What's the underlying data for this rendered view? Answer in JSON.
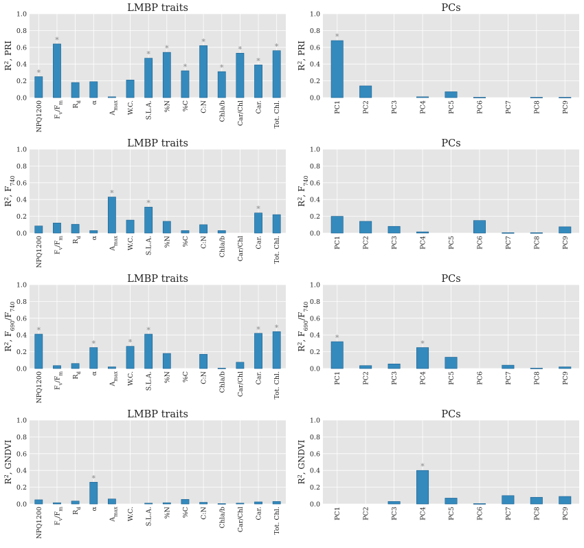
{
  "colors": {
    "panel_bg": "#e5e5e5",
    "grid": "#ffffff",
    "bar": "#348abd",
    "bar_edge": "#1a5f8e",
    "asterisk": "#8c8c8c",
    "text": "#222222"
  },
  "chart_data": [
    {
      "type": "bar",
      "title": "LMBP traits",
      "ylabel_main": "R",
      "ylabel_sup": "2",
      "ylabel_rest": ", PRI",
      "ylabel_sub": "",
      "categories": [
        "NPQ1200",
        "Fv/Fm",
        "Rd",
        "α",
        "Amax",
        "W.C.",
        "S.L.A.",
        "%N",
        "%C",
        "C:N",
        "Chla/b",
        "Car/Chl",
        "Car.",
        "Tot. Chl."
      ],
      "values": [
        0.25,
        0.64,
        0.18,
        0.19,
        0.01,
        0.21,
        0.47,
        0.54,
        0.32,
        0.62,
        0.31,
        0.53,
        0.39,
        0.56
      ],
      "significant": [
        true,
        true,
        false,
        false,
        false,
        false,
        true,
        true,
        true,
        true,
        true,
        true,
        true,
        true
      ],
      "significance_mark": "*",
      "ylim": [
        0,
        1.0
      ],
      "yticks": [
        "0.0",
        "0.2",
        "0.4",
        "0.6",
        "0.8",
        "1.0"
      ],
      "grid": true
    },
    {
      "type": "bar",
      "title": "PCs",
      "ylabel_main": "R",
      "ylabel_sup": "2",
      "ylabel_rest": ", PRI",
      "ylabel_sub": "",
      "categories": [
        "PC1",
        "PC2",
        "PC3",
        "PC4",
        "PC5",
        "PC6",
        "PC7",
        "PC8",
        "PC9"
      ],
      "values": [
        0.68,
        0.14,
        0.0,
        0.01,
        0.07,
        0.005,
        0.0,
        0.005,
        0.005
      ],
      "significant": [
        true,
        false,
        false,
        false,
        false,
        false,
        false,
        false,
        false
      ],
      "significance_mark": "*",
      "ylim": [
        0,
        1.0
      ],
      "yticks": [
        "0.0",
        "0.2",
        "0.4",
        "0.6",
        "0.8",
        "1.0"
      ],
      "grid": true
    },
    {
      "type": "bar",
      "title": "LMBP traits",
      "ylabel_main": "R",
      "ylabel_sup": "2",
      "ylabel_rest": ", F",
      "ylabel_sub": "740",
      "categories": [
        "NPQ1200",
        "Fv/Fm",
        "Rd",
        "α",
        "Amax",
        "W.C.",
        "S.L.A.",
        "%N",
        "%C",
        "C:N",
        "Chla/b",
        "Car/Chl",
        "Car.",
        "Tot. Chl."
      ],
      "values": [
        0.085,
        0.12,
        0.105,
        0.03,
        0.43,
        0.155,
        0.31,
        0.14,
        0.03,
        0.1,
        0.03,
        0.0,
        0.24,
        0.22
      ],
      "significant": [
        false,
        false,
        false,
        false,
        true,
        false,
        true,
        false,
        false,
        false,
        false,
        false,
        true,
        false
      ],
      "significance_mark": "*",
      "ylim": [
        0,
        1.0
      ],
      "yticks": [
        "0.0",
        "0.2",
        "0.4",
        "0.6",
        "0.8",
        "1.0"
      ],
      "grid": true
    },
    {
      "type": "bar",
      "title": "PCs",
      "ylabel_main": "R",
      "ylabel_sup": "2",
      "ylabel_rest": ", F",
      "ylabel_sub": "740",
      "categories": [
        "PC1",
        "PC2",
        "PC3",
        "PC4",
        "PC5",
        "PC6",
        "PC7",
        "PC8",
        "PC9"
      ],
      "values": [
        0.2,
        0.14,
        0.08,
        0.015,
        0.0,
        0.15,
        0.005,
        0.005,
        0.075
      ],
      "significant": [
        false,
        false,
        false,
        false,
        false,
        false,
        false,
        false,
        false
      ],
      "significance_mark": "*",
      "ylim": [
        0,
        1.0
      ],
      "yticks": [
        "0.0",
        "0.2",
        "0.4",
        "0.6",
        "0.8",
        "1.0"
      ],
      "grid": true
    },
    {
      "type": "bar",
      "title": "LMBP traits",
      "ylabel_main": "R",
      "ylabel_sup": "2",
      "ylabel_rest": ", F",
      "ylabel_sub": "690",
      "ylabel_rest2": "/F",
      "ylabel_sub2": "740",
      "categories": [
        "NPQ1200",
        "Fv/Fm",
        "Rd",
        "α",
        "Amax",
        "W.C.",
        "S.L.A.",
        "%N",
        "%C",
        "C:N",
        "Chla/b",
        "Car/Chl",
        "Car.",
        "Tot. Chl."
      ],
      "values": [
        0.41,
        0.035,
        0.06,
        0.25,
        0.02,
        0.265,
        0.41,
        0.18,
        0.0,
        0.17,
        0.005,
        0.075,
        0.42,
        0.44
      ],
      "significant": [
        true,
        false,
        false,
        true,
        false,
        true,
        true,
        false,
        false,
        false,
        false,
        false,
        true,
        true
      ],
      "significance_mark": "*",
      "ylim": [
        0,
        1.0
      ],
      "yticks": [
        "0.0",
        "0.2",
        "0.4",
        "0.6",
        "0.8",
        "1.0"
      ],
      "grid": true
    },
    {
      "type": "bar",
      "title": "PCs",
      "ylabel_main": "R",
      "ylabel_sup": "2",
      "ylabel_rest": ", F",
      "ylabel_sub": "690",
      "ylabel_rest2": "/F",
      "ylabel_sub2": "740",
      "categories": [
        "PC1",
        "PC2",
        "PC3",
        "PC4",
        "PC5",
        "PC6",
        "PC7",
        "PC8",
        "PC9"
      ],
      "values": [
        0.32,
        0.035,
        0.055,
        0.25,
        0.135,
        0.0,
        0.04,
        0.005,
        0.02
      ],
      "significant": [
        true,
        false,
        false,
        true,
        false,
        false,
        false,
        false,
        false
      ],
      "significance_mark": "*",
      "ylim": [
        0,
        1.0
      ],
      "yticks": [
        "0.0",
        "0.2",
        "0.4",
        "0.6",
        "0.8",
        "1.0"
      ],
      "grid": true
    },
    {
      "type": "bar",
      "title": "LMBP traits",
      "ylabel_main": "R",
      "ylabel_sup": "2",
      "ylabel_rest": ", GNDVI",
      "ylabel_sub": "",
      "categories": [
        "NPQ1200",
        "Fv/Fm",
        "Rd",
        "α",
        "Amax",
        "W.C.",
        "S.L.A.",
        "%N",
        "%C",
        "C:N",
        "Chla/b",
        "Car/Chl",
        "Car.",
        "Tot. Chl."
      ],
      "values": [
        0.05,
        0.015,
        0.035,
        0.26,
        0.06,
        0.0,
        0.01,
        0.015,
        0.055,
        0.02,
        0.005,
        0.01,
        0.025,
        0.03
      ],
      "significant": [
        false,
        false,
        false,
        true,
        false,
        false,
        false,
        false,
        false,
        false,
        false,
        false,
        false,
        false
      ],
      "significance_mark": "*",
      "ylim": [
        0,
        1.0
      ],
      "yticks": [
        "0.0",
        "0.2",
        "0.4",
        "0.6",
        "0.8",
        "1.0"
      ],
      "grid": true
    },
    {
      "type": "bar",
      "title": "PCs",
      "ylabel_main": "R",
      "ylabel_sup": "2",
      "ylabel_rest": ", GNDVI",
      "ylabel_sub": "",
      "categories": [
        "PC1",
        "PC2",
        "PC3",
        "PC4",
        "PC5",
        "PC6",
        "PC7",
        "PC8",
        "PC9"
      ],
      "values": [
        0.0,
        0.0,
        0.03,
        0.4,
        0.07,
        0.005,
        0.1,
        0.08,
        0.09
      ],
      "significant": [
        false,
        false,
        false,
        true,
        false,
        false,
        false,
        false,
        false
      ],
      "significance_mark": "*",
      "ylim": [
        0,
        1.0
      ],
      "yticks": [
        "0.0",
        "0.2",
        "0.4",
        "0.6",
        "0.8",
        "1.0"
      ],
      "grid": true
    }
  ]
}
